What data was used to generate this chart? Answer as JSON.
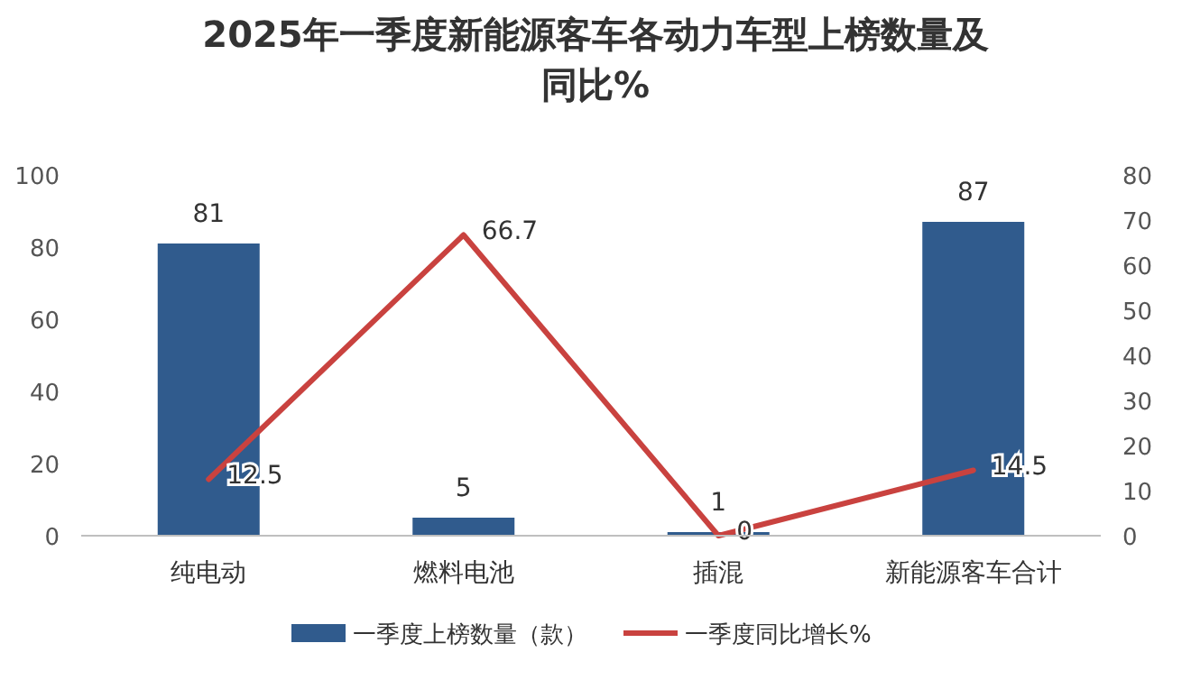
{
  "chart_data": {
    "type": "bar",
    "title": "2025年一季度新能源客车各动力车型上榜数量及同比%",
    "categories": [
      "纯电动",
      "燃料电池",
      "插混",
      "新能源客车合计"
    ],
    "series": [
      {
        "name": "一季度上榜数量（款）",
        "color": "#305b8d",
        "values": [
          81,
          5,
          1,
          87
        ]
      },
      {
        "name": "一季度同比增长%",
        "type": "line",
        "axis": "y2",
        "color": "#c9423f",
        "values": [
          12.5,
          66.7,
          0,
          14.5
        ]
      }
    ],
    "ylim": [
      0,
      100
    ],
    "yticks": [
      0,
      20,
      40,
      60,
      80,
      100
    ],
    "y2lim": [
      0,
      80
    ],
    "y2ticks": [
      0,
      10,
      20,
      30,
      40,
      50,
      60,
      70,
      80
    ],
    "data_labels": true,
    "legend": "bottom"
  }
}
